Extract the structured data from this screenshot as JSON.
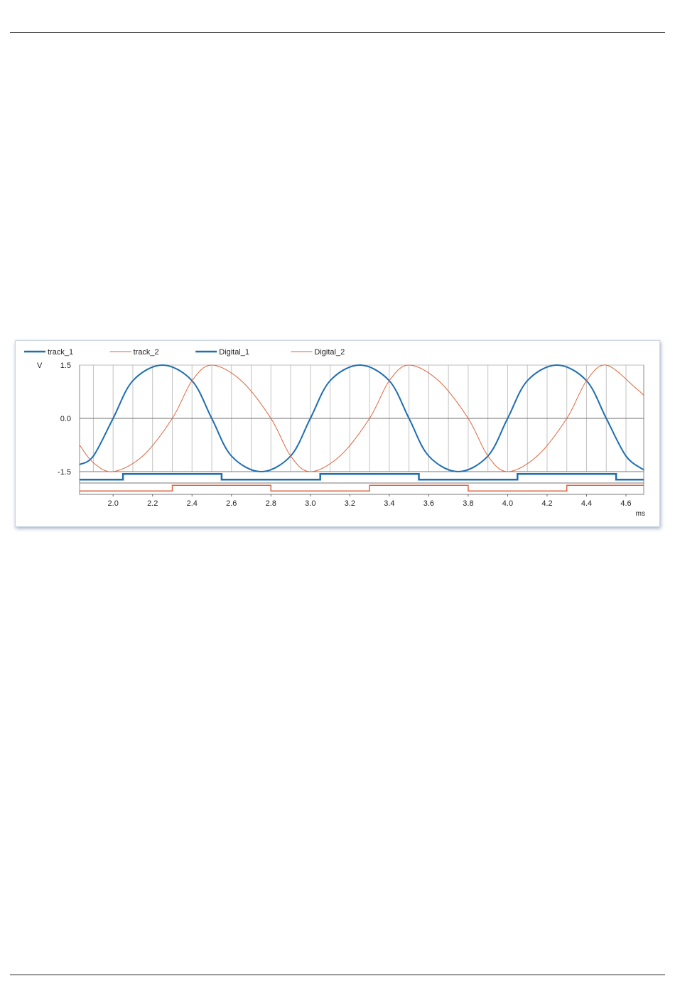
{
  "page": {
    "background": "#ffffff"
  },
  "chart_data": {
    "type": "line",
    "title": "",
    "xlabel": "",
    "ylabel": "",
    "x_unit": "ms",
    "y_unit": "V",
    "xlim": [
      1.83,
      4.69
    ],
    "ylim": [
      -1.5,
      1.5
    ],
    "x_ticks": [
      "2.0",
      "2.2",
      "2.4",
      "2.6",
      "2.8",
      "3.0",
      "3.2",
      "3.4",
      "3.6",
      "3.8",
      "4.0",
      "4.2",
      "4.4",
      "4.6"
    ],
    "y_ticks": [
      "1.5",
      "0.0",
      "-1.5"
    ],
    "grid": true,
    "legend": "top-left",
    "series": [
      {
        "name": "track_1",
        "kind": "analog",
        "color": "#1f6fb0",
        "x": [
          1.83,
          1.9,
          2.0,
          2.1,
          2.25,
          2.4,
          2.5,
          2.6,
          2.75,
          2.9,
          3.0,
          3.1,
          3.25,
          3.4,
          3.5,
          3.6,
          3.75,
          3.9,
          4.0,
          4.1,
          4.25,
          4.4,
          4.5,
          4.6,
          4.69
        ],
        "y": [
          -1.3,
          -1.06,
          0.0,
          1.06,
          1.5,
          1.06,
          0.0,
          -1.06,
          -1.5,
          -1.06,
          0.0,
          1.06,
          1.5,
          1.06,
          0.0,
          -1.06,
          -1.5,
          -1.06,
          0.0,
          1.06,
          1.5,
          1.06,
          0.0,
          -1.06,
          -1.45
        ]
      },
      {
        "name": "track_2",
        "kind": "analog",
        "color": "#e0643c",
        "x": [
          1.83,
          1.9,
          2.0,
          2.15,
          2.3,
          2.4,
          2.5,
          2.65,
          2.8,
          2.9,
          3.0,
          3.15,
          3.3,
          3.4,
          3.5,
          3.65,
          3.8,
          3.9,
          4.0,
          4.15,
          4.3,
          4.4,
          4.5,
          4.65,
          4.69
        ],
        "y": [
          -0.75,
          -1.25,
          -1.5,
          -1.06,
          0.0,
          1.06,
          1.5,
          1.06,
          0.0,
          -1.06,
          -1.5,
          -1.06,
          0.0,
          1.06,
          1.5,
          1.06,
          0.0,
          -1.06,
          -1.5,
          -1.06,
          0.0,
          1.06,
          1.5,
          0.85,
          0.65
        ]
      },
      {
        "name": "Digital_1",
        "kind": "digital",
        "color": "#1f6fb0",
        "initial": 0,
        "transitions": [
          2.05,
          2.55,
          3.05,
          3.55,
          4.05,
          4.55
        ]
      },
      {
        "name": "Digital_2",
        "kind": "digital",
        "color": "#e0643c",
        "initial": 0,
        "transitions": [
          2.3,
          2.8,
          3.3,
          3.8,
          4.3
        ]
      }
    ]
  }
}
